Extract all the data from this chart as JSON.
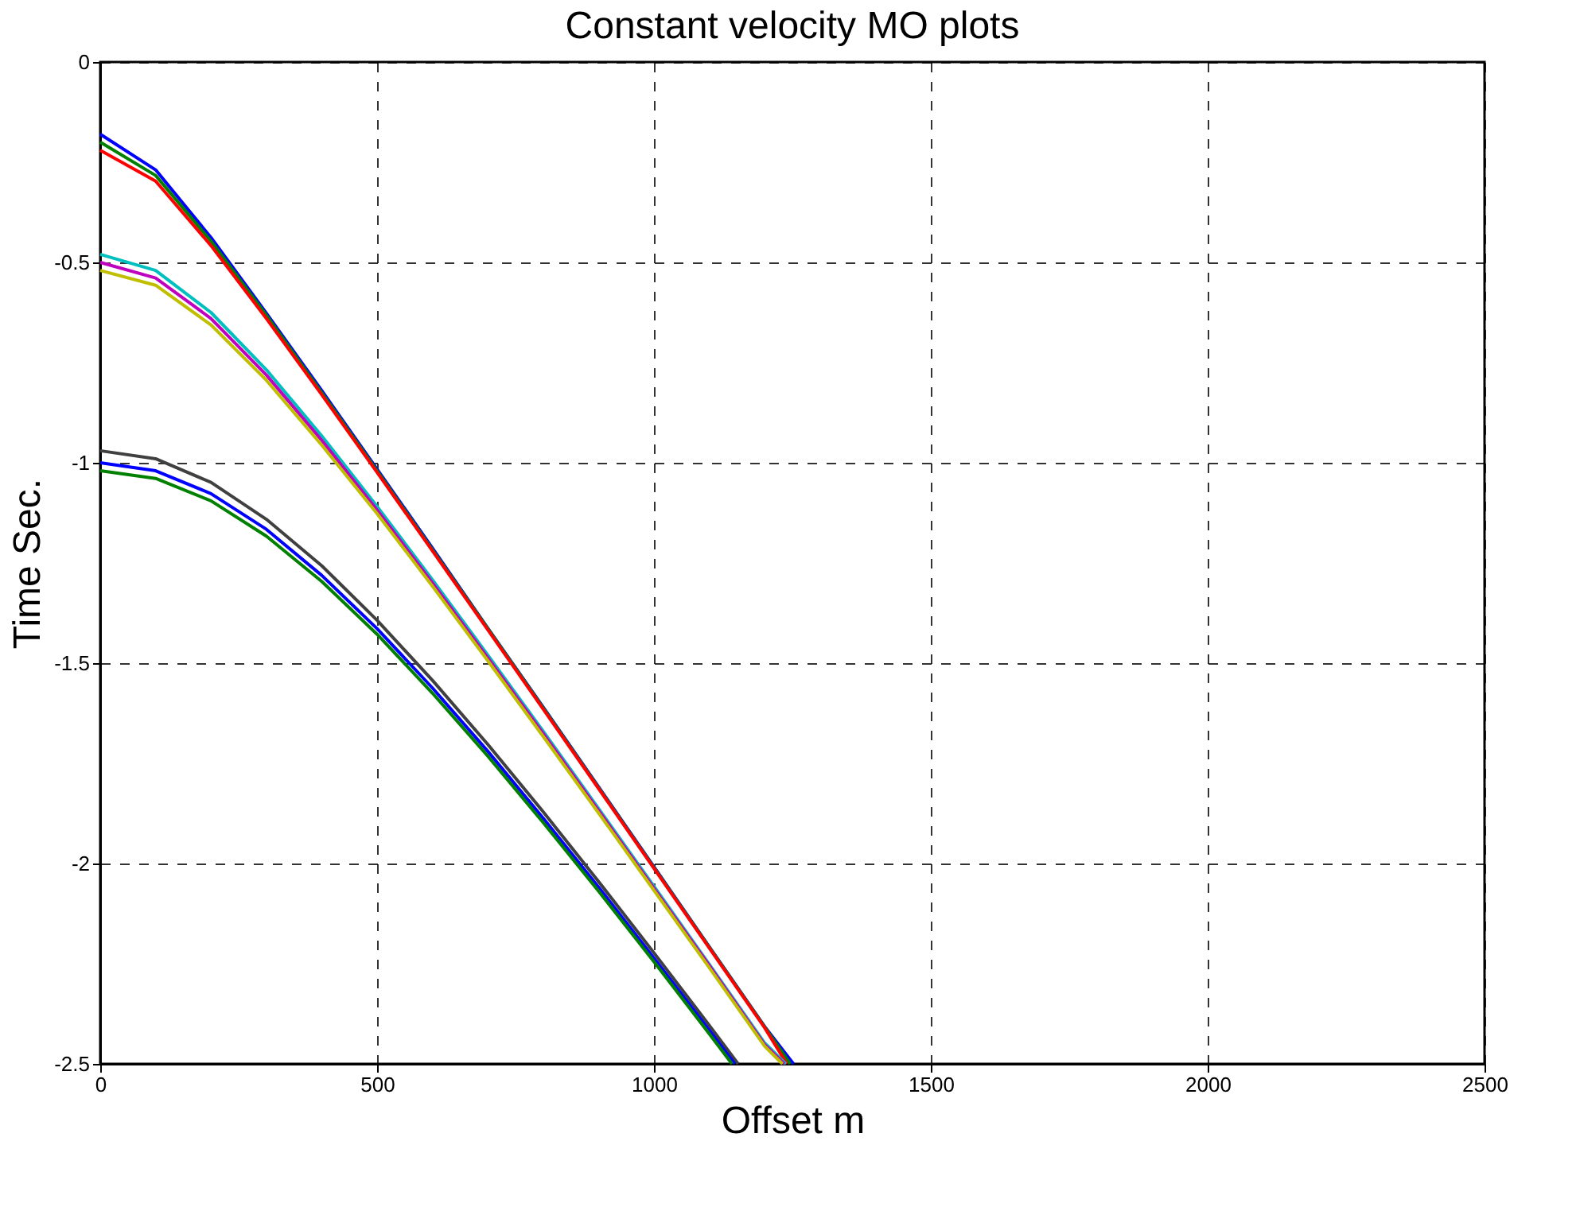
{
  "chart_data": {
    "type": "line",
    "title": "Constant velocity MO plots",
    "xlabel": "Offset m",
    "ylabel": "Time Sec.",
    "series": [
      {
        "color": "#0000ff",
        "x": [
          0,
          100,
          200,
          300,
          400,
          500,
          600,
          700,
          800,
          900,
          1000,
          1100,
          1200,
          1252
        ],
        "values": [
          -0.18,
          -0.269,
          -0.438,
          -0.627,
          -0.82,
          -1.016,
          -1.213,
          -1.413,
          -1.61,
          -1.809,
          -2.008,
          -2.208,
          -2.407,
          -2.5
        ]
      },
      {
        "color": "#008000",
        "x": [
          0,
          100,
          200,
          300,
          400,
          500,
          600,
          700,
          800,
          900,
          1000,
          1100,
          1200,
          1246
        ],
        "values": [
          -0.2,
          -0.283,
          -0.447,
          -0.632,
          -0.825,
          -1.02,
          -1.217,
          -1.414,
          -1.612,
          -1.811,
          -2.01,
          -2.209,
          -2.408,
          -2.5
        ]
      },
      {
        "color": "#ff0000",
        "x": [
          0,
          100,
          200,
          300,
          400,
          500,
          600,
          700,
          800,
          900,
          1000,
          1100,
          1200,
          1240
        ],
        "values": [
          -0.22,
          -0.297,
          -0.458,
          -0.64,
          -0.83,
          -1.024,
          -1.22,
          -1.417,
          -1.615,
          -1.813,
          -2.012,
          -2.211,
          -2.41,
          -2.5
        ]
      },
      {
        "color": "#00bfbf",
        "x": [
          0,
          100,
          200,
          300,
          400,
          500,
          600,
          700,
          800,
          900,
          1000,
          1100,
          1200,
          1238
        ],
        "values": [
          -0.48,
          -0.52,
          -0.625,
          -0.768,
          -0.933,
          -1.109,
          -1.292,
          -1.48,
          -1.67,
          -1.863,
          -2.057,
          -2.252,
          -2.448,
          -2.5
        ]
      },
      {
        "color": "#bf00bf",
        "x": [
          0,
          100,
          200,
          300,
          400,
          500,
          600,
          700,
          800,
          900,
          1000,
          1100,
          1200,
          1235
        ],
        "values": [
          -0.5,
          -0.539,
          -0.64,
          -0.781,
          -0.944,
          -1.118,
          -1.3,
          -1.487,
          -1.676,
          -1.868,
          -2.062,
          -2.255,
          -2.452,
          -2.5
        ]
      },
      {
        "color": "#bfbf00",
        "x": [
          0,
          100,
          200,
          300,
          400,
          500,
          600,
          700,
          800,
          900,
          1000,
          1100,
          1200,
          1232
        ],
        "values": [
          -0.52,
          -0.557,
          -0.656,
          -0.794,
          -0.956,
          -1.127,
          -1.308,
          -1.494,
          -1.683,
          -1.874,
          -2.067,
          -2.26,
          -2.456,
          -2.5
        ]
      },
      {
        "color": "#404040",
        "x": [
          0,
          100,
          200,
          300,
          400,
          500,
          600,
          700,
          800,
          900,
          1000,
          1100,
          1152
        ],
        "values": [
          -0.97,
          -0.99,
          -1.049,
          -1.141,
          -1.257,
          -1.393,
          -1.543,
          -1.703,
          -1.871,
          -2.045,
          -2.223,
          -2.404,
          -2.5
        ]
      },
      {
        "color": "#0000ff",
        "x": [
          0,
          100,
          200,
          300,
          400,
          500,
          600,
          700,
          800,
          900,
          1000,
          1100,
          1146
        ],
        "values": [
          -1.0,
          -1.02,
          -1.077,
          -1.166,
          -1.281,
          -1.414,
          -1.562,
          -1.72,
          -1.887,
          -2.059,
          -2.236,
          -2.416,
          -2.5
        ]
      },
      {
        "color": "#008000",
        "x": [
          0,
          100,
          200,
          300,
          400,
          500,
          600,
          700,
          800,
          900,
          1000,
          1100,
          1141
        ],
        "values": [
          -1.02,
          -1.039,
          -1.095,
          -1.183,
          -1.296,
          -1.428,
          -1.575,
          -1.732,
          -1.898,
          -2.069,
          -2.245,
          -2.425,
          -2.5
        ]
      }
    ],
    "xlim": [
      0,
      2500
    ],
    "xticks": [
      0,
      500,
      1000,
      1500,
      2000,
      2500
    ],
    "ylim": [
      -2.5,
      0
    ],
    "yticks": [
      -2.5,
      -2,
      -1.5,
      -1,
      -0.5,
      0
    ],
    "grid": true,
    "legend": false,
    "marker": "none",
    "line_style": "solid"
  }
}
